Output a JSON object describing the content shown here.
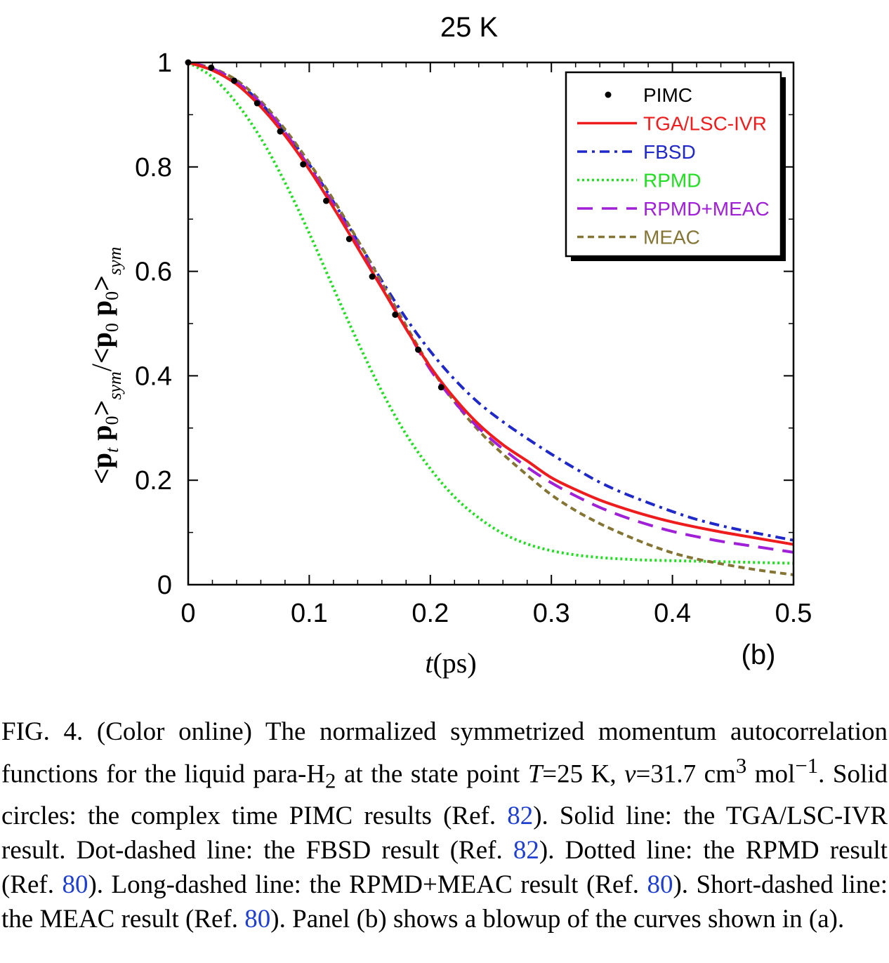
{
  "chart_data": {
    "type": "line",
    "title": "25 K",
    "xlabel": "t(ps)",
    "ylabel": "<p_t p_0>_sym / <p_0 p_0>_sym",
    "panel_label": "(b)",
    "xlim": [
      0,
      0.5
    ],
    "ylim": [
      0,
      1
    ],
    "xticks": [
      "0",
      "0.1",
      "0.2",
      "0.3",
      "0.4",
      "0.5"
    ],
    "yticks": [
      "0",
      "0.2",
      "0.4",
      "0.6",
      "0.8",
      "1"
    ],
    "legend_position": "top-right",
    "series": [
      {
        "name": "PIMC",
        "style": "points",
        "color": "#000000",
        "x": [
          0,
          0.019,
          0.038,
          0.057,
          0.076,
          0.095,
          0.114,
          0.133,
          0.152,
          0.171,
          0.19,
          0.209
        ],
        "y": [
          1.0,
          0.99,
          0.965,
          0.922,
          0.868,
          0.805,
          0.735,
          0.662,
          0.59,
          0.517,
          0.45,
          0.378
        ]
      },
      {
        "name": "TGA/LSC-IVR",
        "style": "solid",
        "color": "#ee1c1c",
        "x": [
          0,
          0.02,
          0.04,
          0.06,
          0.08,
          0.1,
          0.12,
          0.14,
          0.16,
          0.18,
          0.2,
          0.22,
          0.24,
          0.26,
          0.28,
          0.3,
          0.32,
          0.34,
          0.36,
          0.38,
          0.4,
          0.42,
          0.44,
          0.46,
          0.48,
          0.5
        ],
        "y": [
          1.0,
          0.985,
          0.958,
          0.915,
          0.86,
          0.795,
          0.722,
          0.645,
          0.568,
          0.49,
          0.417,
          0.357,
          0.307,
          0.268,
          0.237,
          0.205,
          0.182,
          0.162,
          0.146,
          0.132,
          0.12,
          0.11,
          0.101,
          0.093,
          0.085,
          0.077
        ]
      },
      {
        "name": "FBSD",
        "style": "dashdot",
        "color": "#1f28c8",
        "x": [
          0,
          0.02,
          0.04,
          0.06,
          0.08,
          0.1,
          0.12,
          0.14,
          0.16,
          0.18,
          0.2,
          0.22,
          0.24,
          0.26,
          0.28,
          0.3,
          0.32,
          0.34,
          0.36,
          0.38,
          0.4,
          0.42,
          0.44,
          0.46,
          0.48,
          0.5
        ],
        "y": [
          1.0,
          0.988,
          0.963,
          0.922,
          0.868,
          0.805,
          0.733,
          0.658,
          0.582,
          0.51,
          0.447,
          0.393,
          0.348,
          0.312,
          0.28,
          0.25,
          0.222,
          0.196,
          0.175,
          0.157,
          0.14,
          0.125,
          0.113,
          0.103,
          0.094,
          0.085
        ]
      },
      {
        "name": "RPMD",
        "style": "dotted",
        "color": "#22dd22",
        "x": [
          0,
          0.02,
          0.04,
          0.06,
          0.08,
          0.1,
          0.12,
          0.14,
          0.16,
          0.18,
          0.2,
          0.22,
          0.24,
          0.26,
          0.28,
          0.3,
          0.32,
          0.34,
          0.36,
          0.38,
          0.4,
          0.42,
          0.44,
          0.46,
          0.48,
          0.5
        ],
        "y": [
          1.0,
          0.972,
          0.922,
          0.855,
          0.77,
          0.673,
          0.568,
          0.465,
          0.37,
          0.288,
          0.222,
          0.168,
          0.128,
          0.098,
          0.078,
          0.065,
          0.057,
          0.052,
          0.049,
          0.047,
          0.046,
          0.045,
          0.044,
          0.043,
          0.042,
          0.041
        ]
      },
      {
        "name": "RPMD+MEAC",
        "style": "longdash",
        "color": "#a020d8",
        "x": [
          0,
          0.02,
          0.04,
          0.06,
          0.08,
          0.1,
          0.12,
          0.14,
          0.16,
          0.18,
          0.2,
          0.22,
          0.24,
          0.26,
          0.28,
          0.3,
          0.32,
          0.34,
          0.36,
          0.38,
          0.4,
          0.42,
          0.44,
          0.46,
          0.48,
          0.5
        ],
        "y": [
          1.0,
          0.988,
          0.962,
          0.922,
          0.866,
          0.8,
          0.728,
          0.65,
          0.57,
          0.49,
          0.412,
          0.35,
          0.3,
          0.26,
          0.225,
          0.195,
          0.17,
          0.148,
          0.13,
          0.115,
          0.102,
          0.092,
          0.083,
          0.076,
          0.069,
          0.062
        ]
      },
      {
        "name": "MEAC",
        "style": "shortdash",
        "color": "#857535",
        "x": [
          0,
          0.02,
          0.04,
          0.06,
          0.08,
          0.1,
          0.12,
          0.14,
          0.16,
          0.18,
          0.2,
          0.22,
          0.24,
          0.26,
          0.28,
          0.3,
          0.32,
          0.34,
          0.36,
          0.38,
          0.4,
          0.42,
          0.44,
          0.46,
          0.48,
          0.5
        ],
        "y": [
          1.0,
          0.989,
          0.966,
          0.926,
          0.872,
          0.808,
          0.737,
          0.66,
          0.578,
          0.496,
          0.417,
          0.35,
          0.295,
          0.25,
          0.21,
          0.172,
          0.142,
          0.117,
          0.096,
          0.077,
          0.061,
          0.049,
          0.04,
          0.032,
          0.025,
          0.019
        ]
      }
    ]
  },
  "caption": {
    "p1": "FIG. 4. (Color online) The normalized symmetrized momentum autocorrelation functions for the liquid para-H",
    "p1_sub": "2",
    "p2": " at the state point ",
    "T_var": "T",
    "p3": "=25 K, ",
    "v_var": "v",
    "p4": "=31.7 cm",
    "p4_sup": "3",
    "p5": " mol",
    "p5_sup": "−1",
    "p6": ". Solid circles: the complex time PIMC results (Ref. ",
    "ref1": "82",
    "p7": "). Solid line: the TGA/LSC-IVR result. Dot-dashed line: the FBSD result (Ref. ",
    "ref2": "82",
    "p8": "). Dotted line: the RPMD result (Ref. ",
    "ref3": "80",
    "p9": "). Long-dashed line: the RPMD+MEAC result (Ref. ",
    "ref4": "80",
    "p10": "). Short-dashed line: the MEAC result (Ref. ",
    "ref5": "80",
    "p11": "). Panel (b) shows a blowup of the curves shown in (a)."
  }
}
